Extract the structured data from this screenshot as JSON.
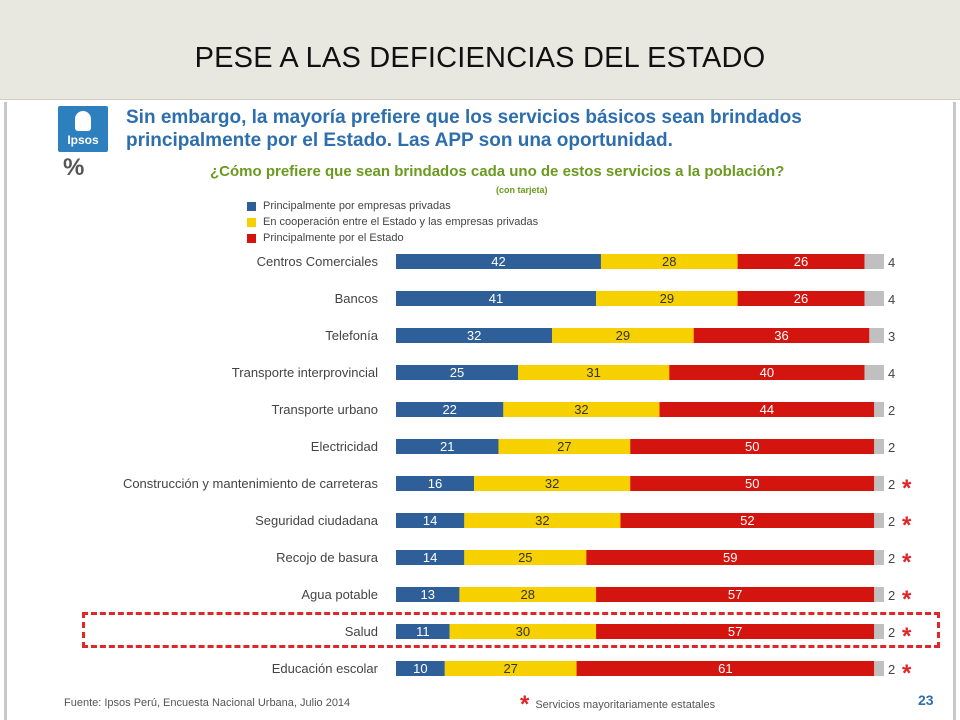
{
  "slide": {
    "title": "PESE A LAS DEFICIENCIAS DEL ESTADO",
    "logo_text": "Ipsos",
    "percent_sign": "%",
    "headline_line1": "Sin embargo, la mayoría prefiere que los servicios básicos sean brindados",
    "headline_line2": "principalmente por el Estado. Las APP son una oportunidad.",
    "source": "Fuente: Ipsos Perú, Encuesta Nacional Urbana, Julio 2014",
    "footnote_star": "*",
    "footnote": "Servicios mayoritariamente estatales",
    "page_number": "23"
  },
  "chart_data": {
    "type": "bar",
    "orientation": "horizontal",
    "stacked": true,
    "title": "¿Cómo prefiere que sean brindados cada uno de estos servicios a la población?",
    "subtitle": "(con tarjeta)",
    "xlim": [
      0,
      100
    ],
    "legend_position": "top-left",
    "categories": [
      "Centros Comerciales",
      "Bancos",
      "Telefonía",
      "Transporte interprovincial",
      "Transporte urbano",
      "Electricidad",
      "Construcción y mantenimiento de carreteras",
      "Seguridad ciudadana",
      "Recojo de basura",
      "Agua potable",
      "Salud",
      "Educación escolar"
    ],
    "series": [
      {
        "name": "Principalmente por empresas privadas",
        "color": "#2e5f98",
        "values": [
          42,
          41,
          32,
          25,
          22,
          21,
          16,
          14,
          14,
          13,
          11,
          10
        ]
      },
      {
        "name": "En cooperación entre el Estado y las empresas privadas",
        "color": "#f7d000",
        "values": [
          28,
          29,
          29,
          31,
          32,
          27,
          32,
          32,
          25,
          28,
          30,
          27
        ]
      },
      {
        "name": "Principalmente por el Estado",
        "color": "#d4140f",
        "values": [
          26,
          26,
          36,
          40,
          44,
          50,
          50,
          52,
          59,
          57,
          57,
          61
        ]
      },
      {
        "color": "#c0c0c0",
        "values": [
          4,
          4,
          3,
          4,
          2,
          2,
          2,
          2,
          2,
          2,
          2,
          2
        ]
      }
    ],
    "starred": [
      false,
      false,
      false,
      false,
      false,
      false,
      true,
      true,
      true,
      true,
      true,
      true
    ],
    "highlighted_category": "Salud"
  }
}
